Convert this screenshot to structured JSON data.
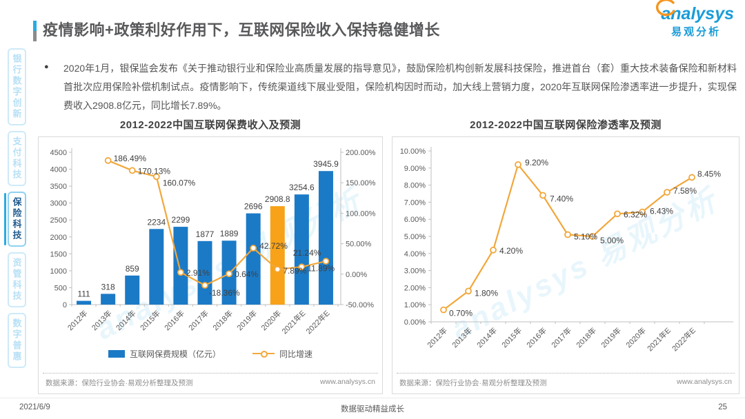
{
  "header": {
    "title": "疫情影响+政策利好作用下，互联网保险收入保持稳健增长",
    "logo": {
      "brand": "analysys",
      "brand_cn": "易观分析"
    }
  },
  "sidebar": {
    "items": [
      {
        "label": "银行数字创新",
        "active": false
      },
      {
        "label": "支付科技",
        "active": false
      },
      {
        "label": "保险科技",
        "active": true
      },
      {
        "label": "资管科技",
        "active": false
      },
      {
        "label": "数字普惠",
        "active": false
      }
    ]
  },
  "bullet": {
    "marker": "●",
    "text": "2020年1月，银保监会发布《关于推动银行业和保险业高质量发展的指导意见》，鼓励保险机构创新发展科技保险，推进首台（套）重大技术装备保险和新材料首批次应用保险补偿机制试点。疫情影响下，传统渠道线下展业受阻，保险机构因时而动，加大线上营销力度，2020年互联网保险渗透率进一步提升，实现保费收入2908.8亿元，同比增长7.89%。"
  },
  "chart_data": [
    {
      "type": "bar",
      "title": "2012-2022中国互联网保费收入及预测",
      "categories": [
        "2012年",
        "2013年",
        "2014年",
        "2015年",
        "2016年",
        "2017年",
        "2018年",
        "2019年",
        "2020年",
        "2021年E",
        "2022年E"
      ],
      "series": [
        {
          "name": "互联网保费规模（亿元）",
          "type": "bar",
          "axis": "left",
          "values": [
            111,
            318,
            859,
            2234,
            2299,
            1877,
            1889,
            2696,
            2908.8,
            3254.6,
            3945.9
          ],
          "labels": [
            "111",
            "318",
            "859",
            "2234",
            "2299",
            "1877",
            "1889",
            "2696",
            "2908.8",
            "3254.6",
            "3945.9"
          ],
          "color": "#1b7ac6",
          "highlight_index": 8,
          "highlight_color": "#f7a218"
        },
        {
          "name": "同比增速",
          "type": "line",
          "axis": "right",
          "values": [
            null,
            186.49,
            170.13,
            160.07,
            2.91,
            -18.36,
            0.64,
            42.72,
            7.89,
            11.89,
            21.24
          ],
          "labels": [
            "",
            "186.49%",
            "170.13%",
            "160.07%",
            "2.91%",
            "-18.36%",
            "0.64%",
            "42.72%",
            "7.89%",
            "11.89%",
            "21.24%"
          ],
          "color": "#f2a73b"
        }
      ],
      "left_axis": {
        "min": 0,
        "max": 4500,
        "step": 500,
        "ticks": [
          "0",
          "500",
          "1000",
          "1500",
          "2000",
          "2500",
          "3000",
          "3500",
          "4000",
          "4500"
        ]
      },
      "right_axis": {
        "min": -50,
        "max": 200,
        "step": 50,
        "ticks": [
          "-50.00%",
          "0.00%",
          "50.00%",
          "100.00%",
          "150.00%",
          "200.00%"
        ]
      },
      "legend": [
        {
          "swatch": "bar",
          "label": "互联网保费规模（亿元）"
        },
        {
          "swatch": "line",
          "label": "同比增速"
        }
      ],
      "grid": false,
      "source": "数据来源：保险行业协会·易观分析整理及预测",
      "site": "www.analysys.cn"
    },
    {
      "type": "line",
      "title": "2012-2022中国互联网保险渗透率及预测",
      "categories": [
        "2012年",
        "2013年",
        "2014年",
        "2015年",
        "2016年",
        "2017年",
        "2018年",
        "2019年",
        "2020年",
        "2021年E",
        "2022年E"
      ],
      "values": [
        0.7,
        1.8,
        4.2,
        9.2,
        7.4,
        5.1,
        5.0,
        6.32,
        6.43,
        7.58,
        8.45
      ],
      "labels": [
        "0.70%",
        "1.80%",
        "4.20%",
        "9.20%",
        "7.40%",
        "5.10%",
        "5.00%",
        "6.32%",
        "6.43%",
        "7.58%",
        "8.45%"
      ],
      "y_axis": {
        "min": 0,
        "max": 10,
        "step": 1,
        "ticks": [
          "0.00%",
          "1.00%",
          "2.00%",
          "3.00%",
          "4.00%",
          "5.00%",
          "6.00%",
          "7.00%",
          "8.00%",
          "9.00%",
          "10.00%"
        ]
      },
      "color": "#f2a73b",
      "grid": false,
      "source": "数据来源：保险行业协会·易观分析整理及预测",
      "site": "www.analysys.cn"
    }
  ],
  "watermark": "analysys 易观分析",
  "footer": {
    "date": "2021/6/9",
    "slogan": "数据驱动精益成长",
    "page": "25"
  }
}
